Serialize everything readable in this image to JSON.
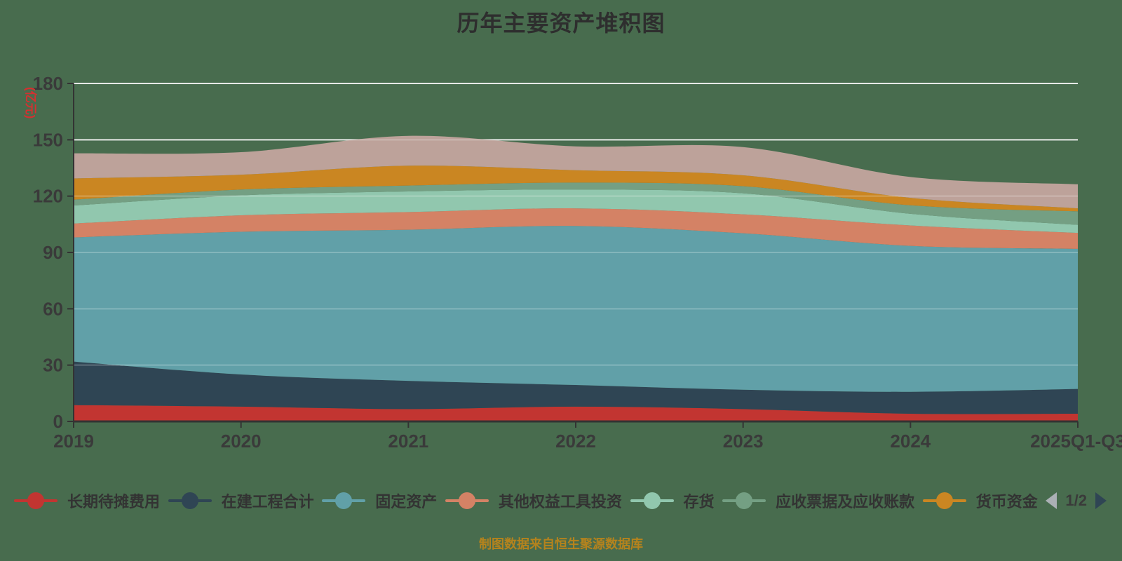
{
  "title": "历年主要资产堆积图",
  "caption": "制图数据来自恒生聚源数据库",
  "colors": {
    "background": "#486c4e",
    "title": "#2e2e2e",
    "axis_line": "#333333",
    "tick_label": "#3a3a3a",
    "grid": "#dfe3df",
    "grid_overlay": "rgba(255,255,255,0.22)",
    "ylabel": "#d43030",
    "caption": "#b5831d",
    "legend_text": "#333333",
    "pager_text": "#3a3a3a",
    "pager_prev": "#abb0b5",
    "pager_next": "#2f4554"
  },
  "axis": {
    "y_ticks": [
      "0",
      "30",
      "60",
      "90",
      "120",
      "150",
      "180"
    ]
  },
  "legend": {
    "pager_label": "1/2"
  },
  "chart_data": {
    "type": "area",
    "stacked": true,
    "smooth": true,
    "title": "历年主要资产堆积图",
    "xlabel": "",
    "ylabel": "(亿元)",
    "ylim": [
      0,
      180
    ],
    "ytick_step": 30,
    "grid": true,
    "legend_position": "bottom",
    "x": [
      "2019",
      "2020",
      "2021",
      "2022",
      "2023",
      "2024",
      "2025Q1-Q3"
    ],
    "series": [
      {
        "name": "长期待摊费用",
        "color": "#c23531",
        "in_visible_legend": true,
        "values": [
          8.7,
          7.9,
          6.6,
          7.9,
          6.6,
          4.1,
          4.1
        ]
      },
      {
        "name": "在建工程合计",
        "color": "#2f4554",
        "in_visible_legend": true,
        "values": [
          23.2,
          17.1,
          15.0,
          11.5,
          10.3,
          11.7,
          13.2
        ]
      },
      {
        "name": "固定资产",
        "color": "#61a0a8",
        "in_visible_legend": true,
        "values": [
          66.1,
          76.0,
          80.5,
          84.7,
          83.3,
          77.7,
          74.6
        ]
      },
      {
        "name": "其他权益工具投资",
        "color": "#d48265",
        "in_visible_legend": true,
        "values": [
          7.4,
          8.8,
          9.4,
          9.4,
          10.1,
          10.9,
          8.5
        ]
      },
      {
        "name": "存货",
        "color": "#91c7ae",
        "in_visible_legend": true,
        "values": [
          9.6,
          10.6,
          11.0,
          10.0,
          11.2,
          6.2,
          4.3
        ]
      },
      {
        "name": "应收票据及应收账款",
        "color": "#749f83",
        "in_visible_legend": true,
        "values": [
          3.1,
          3.1,
          3.1,
          3.7,
          3.8,
          4.5,
          7.2
        ]
      },
      {
        "name": "货币资金",
        "color": "#ca8622",
        "in_visible_legend": true,
        "values": [
          11.3,
          7.9,
          10.6,
          6.6,
          5.8,
          4.0,
          1.6
        ]
      },
      {
        "name": "",
        "color": "#bda29a",
        "in_visible_legend": false,
        "values": [
          13.4,
          12.0,
          15.9,
          12.7,
          15.0,
          11.1,
          12.8
        ]
      }
    ]
  }
}
